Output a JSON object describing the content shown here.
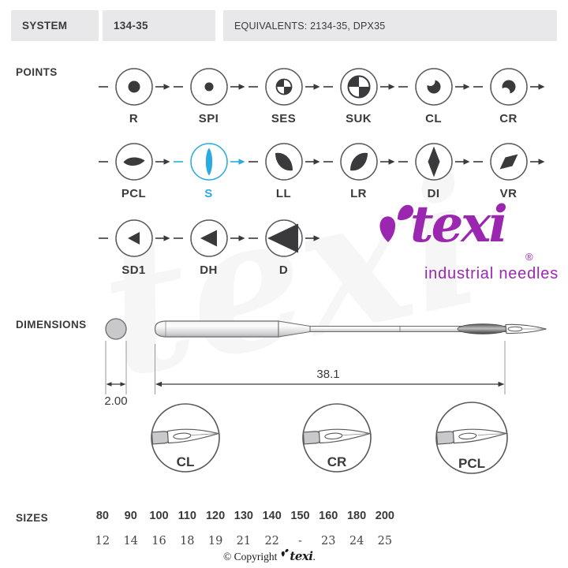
{
  "header": {
    "system_label": "SYSTEM",
    "system_value": "134-35",
    "equivalents": "EQUIVALENTS: 2134-35, DPX35"
  },
  "points_section": {
    "label": "POINTS",
    "highlight_color": "#29ABE2",
    "selected_point": "S",
    "rows": [
      [
        {
          "code": "R",
          "glyph": "dot-large-icon"
        },
        {
          "code": "SPI",
          "glyph": "dot-small-icon"
        },
        {
          "code": "SES",
          "glyph": "quadrant-circle-small-icon"
        },
        {
          "code": "SUK",
          "glyph": "quadrant-circle-large-icon"
        },
        {
          "code": "CL",
          "glyph": "moon-left-icon"
        },
        {
          "code": "CR",
          "glyph": "moon-right-icon"
        }
      ],
      [
        {
          "code": "PCL",
          "glyph": "lens-horizontal-icon"
        },
        {
          "code": "S",
          "glyph": "lens-vertical-icon",
          "selected": true
        },
        {
          "code": "LL",
          "glyph": "lens-diagonal-left-icon"
        },
        {
          "code": "LR",
          "glyph": "lens-diagonal-right-icon"
        },
        {
          "code": "DI",
          "glyph": "diamond-vertical-icon"
        },
        {
          "code": "VR",
          "glyph": "diamond-diagonal-icon"
        }
      ],
      [
        {
          "code": "SD1",
          "glyph": "triangle-small-icon"
        },
        {
          "code": "DH",
          "glyph": "triangle-medium-icon"
        },
        {
          "code": "D",
          "glyph": "triangle-large-icon"
        }
      ]
    ]
  },
  "logo": {
    "brand": "texi",
    "registered": "®",
    "tagline": "industrial needles",
    "color": "#9B27B0"
  },
  "dimensions_section": {
    "label": "DIMENSIONS",
    "length_mm": "38.1",
    "diameter_mm": "2.00",
    "detail_views": [
      "CL",
      "CR",
      "PCL"
    ]
  },
  "sizes_section": {
    "label": "SIZES",
    "metric_row": [
      "80",
      "90",
      "100",
      "110",
      "120",
      "130",
      "140",
      "150",
      "160",
      "180",
      "200"
    ],
    "singer_row": [
      "12",
      "14",
      "16",
      "18",
      "19",
      "21",
      "22",
      "-",
      "23",
      "24",
      "25"
    ]
  },
  "footer": {
    "copyright_prefix": "© Copyright",
    "brand": "texi",
    "suffix": "."
  }
}
